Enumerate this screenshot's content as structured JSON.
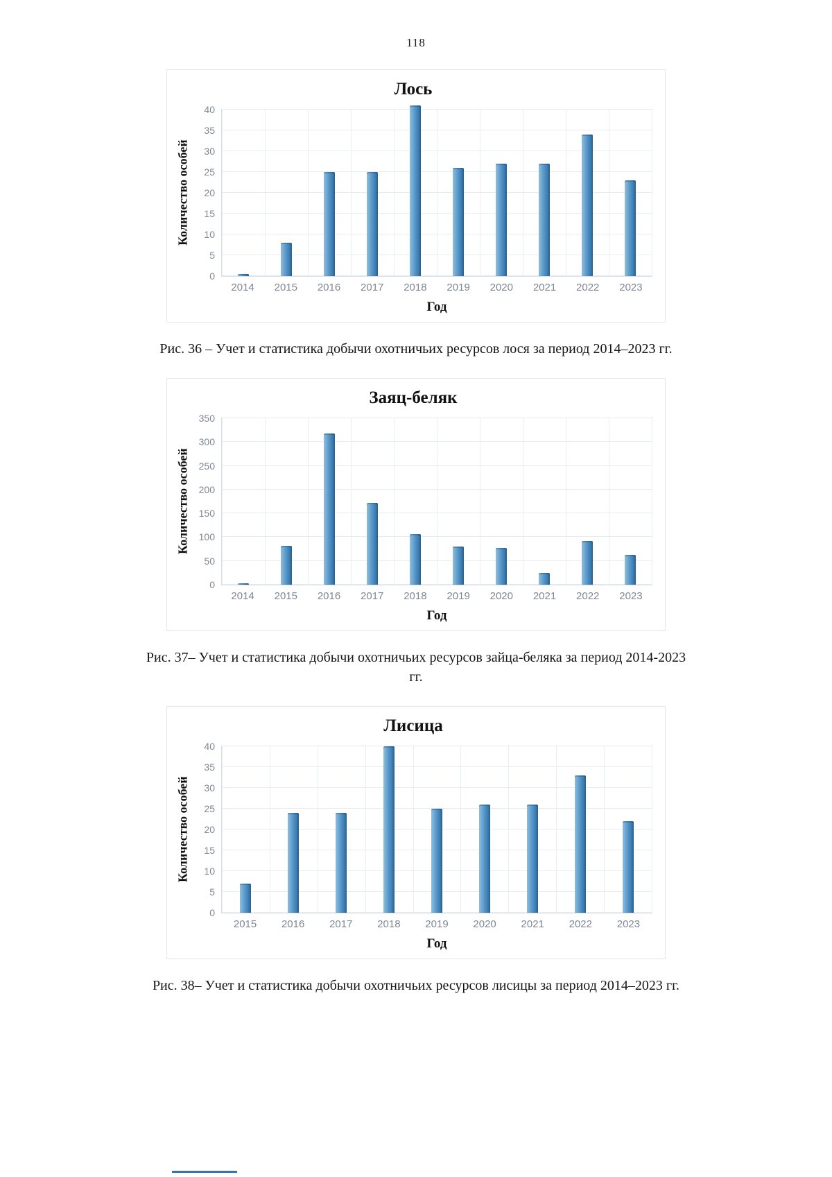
{
  "page": {
    "number": "118"
  },
  "figures": [
    {
      "caption": "Рис. 36 – Учет и статистика добычи охотничьих ресурсов лося за период 2014–2023 гг."
    },
    {
      "caption": "Рис. 37– Учет и статистика добычи охотничьих ресурсов зайца-беляка за период 2014-2023 гг."
    },
    {
      "caption": "Рис. 38– Учет и статистика добычи охотничьих ресурсов лисицы за период 2014–2023 гг."
    }
  ],
  "chart_data": [
    {
      "type": "bar",
      "title": "Лось",
      "categories": [
        "2014",
        "2015",
        "2016",
        "2017",
        "2018",
        "2019",
        "2020",
        "2021",
        "2022",
        "2023"
      ],
      "values": [
        0.5,
        8,
        25,
        25,
        41,
        26,
        27,
        27,
        34,
        23
      ],
      "xlabel": "Год",
      "ylabel": "Количество особей",
      "ylim": [
        0,
        40
      ],
      "ytick_step": 5,
      "grid": true,
      "legend": "none",
      "bar_colors": {
        "light": "#8ebede",
        "mid": "#4e8fc4",
        "dark": "#2f6ea3"
      }
    },
    {
      "type": "bar",
      "title": "Заяц-беляк",
      "categories": [
        "2014",
        "2015",
        "2016",
        "2017",
        "2018",
        "2019",
        "2020",
        "2021",
        "2022",
        "2023"
      ],
      "values": [
        3,
        82,
        318,
        172,
        107,
        80,
        78,
        25,
        92,
        63
      ],
      "xlabel": "Год",
      "ylabel": "Количество особей",
      "ylim": [
        0,
        350
      ],
      "ytick_step": 50,
      "grid": true,
      "legend": "none",
      "bar_colors": {
        "light": "#8ebede",
        "mid": "#4e8fc4",
        "dark": "#2f6ea3"
      }
    },
    {
      "type": "bar",
      "title": "Лисица",
      "categories": [
        "2015",
        "2016",
        "2017",
        "2018",
        "2019",
        "2020",
        "2021",
        "2022",
        "2023"
      ],
      "values": [
        7,
        24,
        24,
        40,
        25,
        26,
        26,
        33,
        22
      ],
      "xlabel": "Год",
      "ylabel": "Количество особей",
      "ylim": [
        0,
        40
      ],
      "ytick_step": 5,
      "grid": true,
      "legend": "none",
      "bar_colors": {
        "light": "#8ebede",
        "mid": "#4e8fc4",
        "dark": "#2f6ea3"
      }
    }
  ]
}
